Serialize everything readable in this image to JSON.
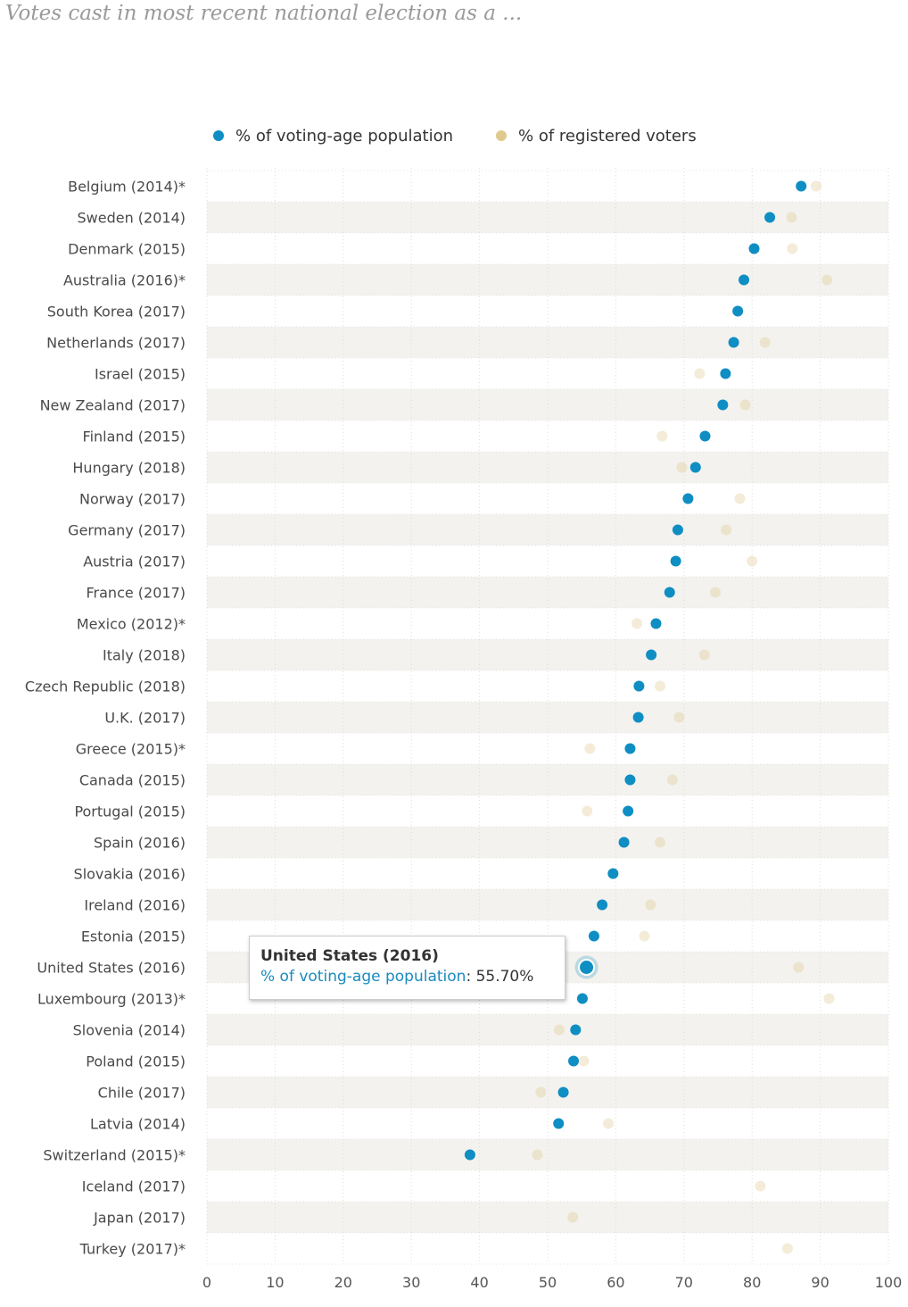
{
  "title": "Votes cast in most recent national election as a ...",
  "tooltip": {
    "title": "United States (2016)",
    "series": "% of voting-age population",
    "separator": ": ",
    "value": "55.70%"
  },
  "chart_data": {
    "type": "scatter",
    "title": "Votes cast in most recent national election as a ...",
    "xlabel": "",
    "ylabel": "",
    "xlim": [
      0,
      100
    ],
    "x_ticks": [
      0,
      10,
      20,
      30,
      40,
      50,
      60,
      70,
      80,
      90,
      100
    ],
    "grid": true,
    "legend_position": "top",
    "categories": [
      "Belgium (2014)*",
      "Sweden (2014)",
      "Denmark (2015)",
      "Australia (2016)*",
      "South Korea (2017)",
      "Netherlands (2017)",
      "Israel (2015)",
      "New Zealand (2017)",
      "Finland (2015)",
      "Hungary (2018)",
      "Norway (2017)",
      "Germany (2017)",
      "Austria (2017)",
      "France (2017)",
      "Mexico (2012)*",
      "Italy (2018)",
      "Czech Republic (2018)",
      "U.K. (2017)",
      "Greece (2015)*",
      "Canada (2015)",
      "Portugal (2015)",
      "Spain (2016)",
      "Slovakia (2016)",
      "Ireland (2016)",
      "Estonia (2015)",
      "United States (2016)",
      "Luxembourg (2013)*",
      "Slovenia (2014)",
      "Poland (2015)",
      "Chile (2017)",
      "Latvia (2014)",
      "Switzerland (2015)*",
      "Iceland (2017)",
      "Japan (2017)",
      "Turkey (2017)*"
    ],
    "series": [
      {
        "name": "% of voting-age population",
        "color": "#0f8ec3",
        "values": [
          87.2,
          82.6,
          80.3,
          78.8,
          77.9,
          77.3,
          76.1,
          75.7,
          73.1,
          71.7,
          70.6,
          69.1,
          68.8,
          67.9,
          65.9,
          65.2,
          63.4,
          63.3,
          62.1,
          62.1,
          61.8,
          61.2,
          59.6,
          58.0,
          56.8,
          55.7,
          55.1,
          54.1,
          53.8,
          52.3,
          51.6,
          38.6,
          null,
          null,
          null
        ]
      },
      {
        "name": "% of registered voters",
        "color": "#e0c98e",
        "values": [
          89.4,
          85.8,
          85.9,
          91.0,
          null,
          81.9,
          72.3,
          79.0,
          66.8,
          69.7,
          78.2,
          76.2,
          80.0,
          74.6,
          63.1,
          73.0,
          66.5,
          69.3,
          56.2,
          68.3,
          55.8,
          66.5,
          null,
          65.1,
          64.2,
          86.8,
          91.3,
          51.7,
          55.3,
          49.0,
          58.9,
          48.5,
          81.2,
          53.7,
          85.2
        ]
      }
    ],
    "highlighted": {
      "category": "United States (2016)",
      "series": "% of voting-age population",
      "value": 55.7
    }
  }
}
